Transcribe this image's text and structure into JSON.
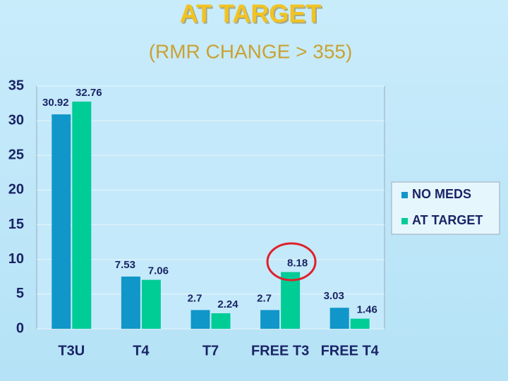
{
  "chart_data": {
    "type": "bar",
    "title": "AT TARGET",
    "subtitle": "(RMR CHANGE > 355)",
    "categories": [
      "T3U",
      "T4",
      "T7",
      "FREE T3",
      "FREE T4"
    ],
    "series": [
      {
        "name": "NO MEDS",
        "color": "#1096c9",
        "values": [
          30.92,
          7.53,
          2.7,
          2.7,
          3.03
        ]
      },
      {
        "name": "AT TARGET",
        "color": "#00cc96",
        "values": [
          32.76,
          7.06,
          2.24,
          8.18,
          1.46
        ]
      }
    ],
    "ylim": [
      0,
      35
    ],
    "yticks": [
      0,
      5,
      10,
      15,
      20,
      25,
      30,
      35
    ],
    "grid": true,
    "legend": "right"
  }
}
